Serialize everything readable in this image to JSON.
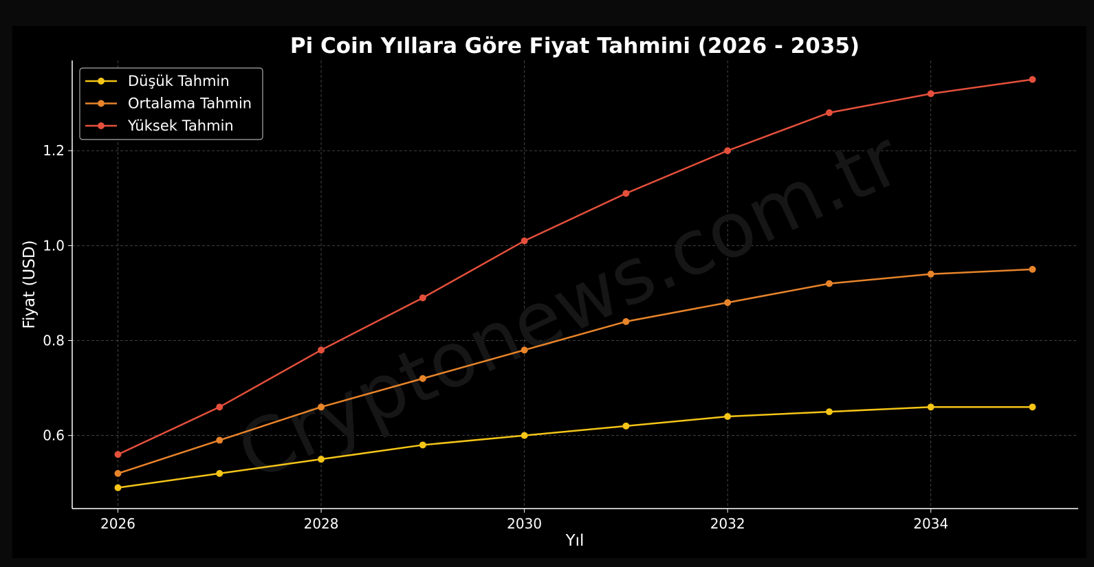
{
  "chart_data": {
    "type": "line",
    "title": "Pi Coin Yıllara Göre Fiyat Tahmini (2026 - 2035)",
    "xlabel": "Yıl",
    "ylabel": "Fiyat (USD)",
    "x": [
      2026,
      2027,
      2028,
      2029,
      2030,
      2031,
      2032,
      2033,
      2034,
      2035
    ],
    "xlim": [
      2025.55,
      2035.45
    ],
    "ylim": [
      0.446,
      1.39
    ],
    "xticks": [
      "2026",
      "2028",
      "2030",
      "2032",
      "2034"
    ],
    "yticks": [
      "0.6",
      "0.8",
      "1.0",
      "1.2"
    ],
    "grid": true,
    "legend_position": "top-left",
    "series": [
      {
        "name": "Düşük Tahmin",
        "color": "#f5c518",
        "values": [
          0.49,
          0.52,
          0.55,
          0.58,
          0.6,
          0.62,
          0.64,
          0.65,
          0.66,
          0.66
        ]
      },
      {
        "name": "Ortalama Tahmin",
        "color": "#e8842a",
        "values": [
          0.52,
          0.59,
          0.66,
          0.72,
          0.78,
          0.84,
          0.88,
          0.92,
          0.94,
          0.95
        ]
      },
      {
        "name": "Yüksek Tahmin",
        "color": "#e5503c",
        "values": [
          0.56,
          0.66,
          0.78,
          0.89,
          1.01,
          1.11,
          1.2,
          1.28,
          1.32,
          1.35
        ]
      }
    ],
    "watermark": "Cryptonews.com.tr"
  }
}
